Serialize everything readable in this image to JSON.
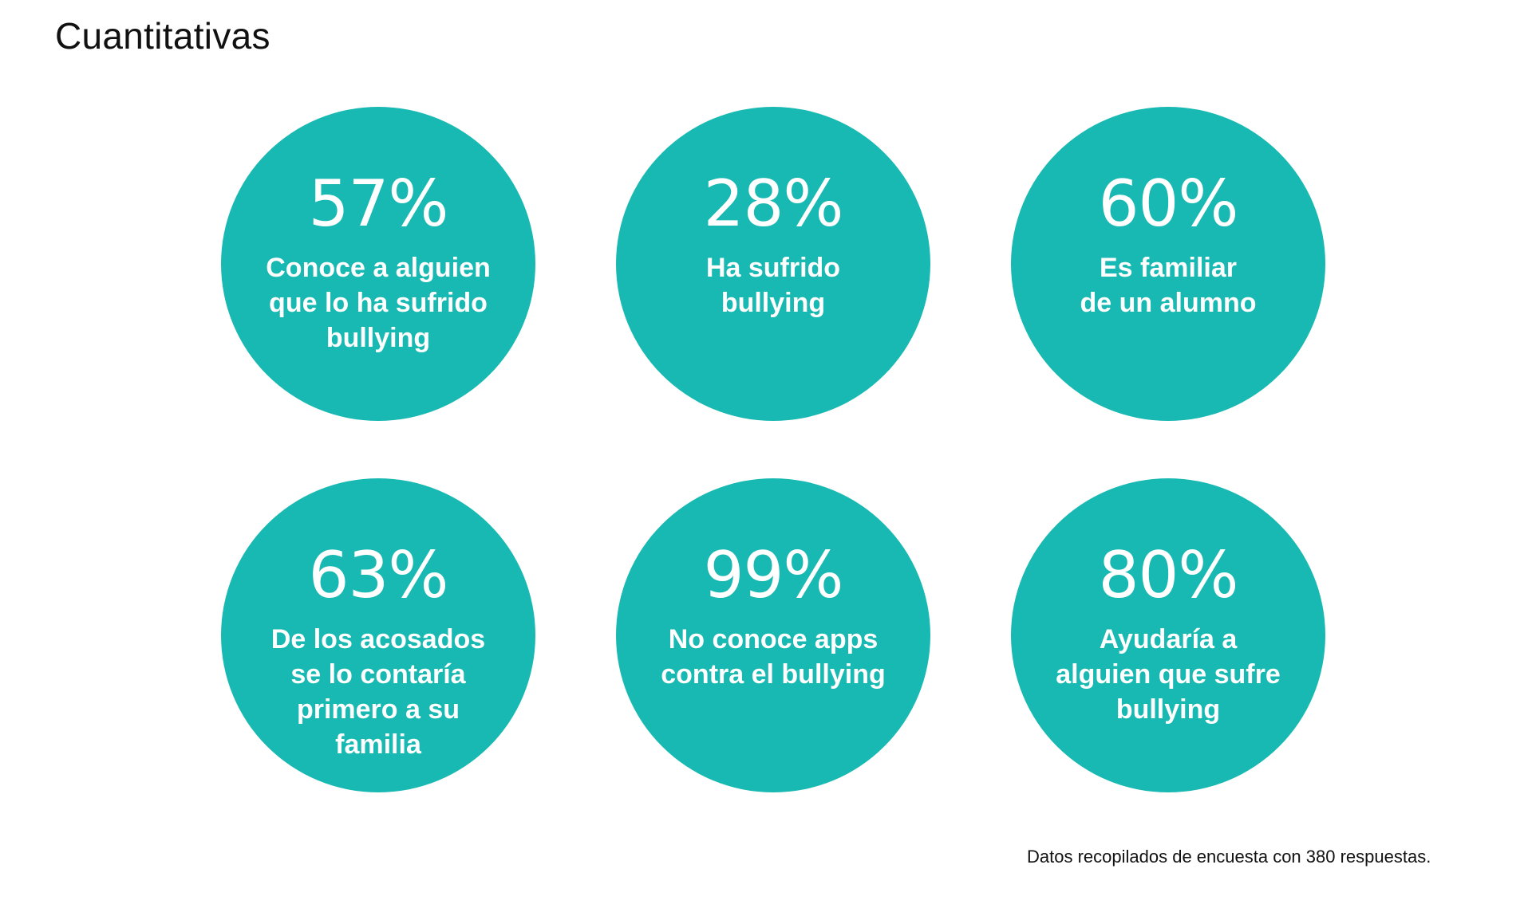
{
  "title": "Cuantitativas",
  "stats": [
    {
      "value": "57%",
      "label": "Conoce a alguien\nque lo ha sufrido\nbullying"
    },
    {
      "value": "28%",
      "label": "Ha sufrido\nbullying"
    },
    {
      "value": "60%",
      "label": "Es familiar\nde un alumno"
    },
    {
      "value": "63%",
      "label": "De los acosados\nse lo contaría\nprimero a su\nfamilia"
    },
    {
      "value": "99%",
      "label": "No conoce apps\ncontra el bullying"
    },
    {
      "value": "80%",
      "label": "Ayudaría a\nalguien que sufre\nbullying"
    }
  ],
  "footnote": "Datos recopilados de encuesta con 380 respuestas.",
  "colors": {
    "circle": "#17B9B2",
    "circle_text": "#FFFFFF",
    "page_text": "#111111"
  }
}
